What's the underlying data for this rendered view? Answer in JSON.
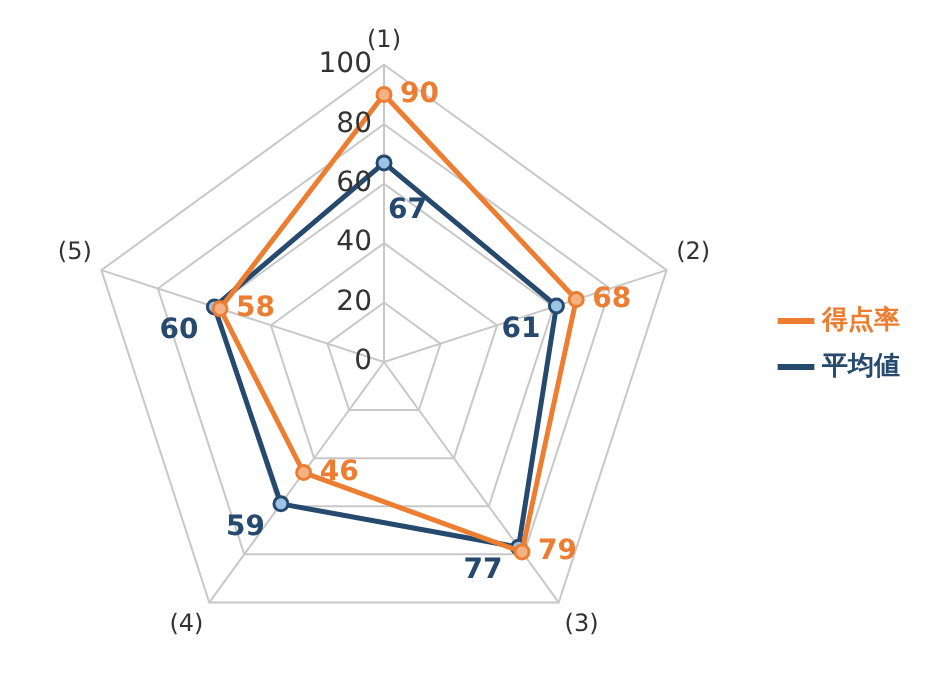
{
  "chart_data": {
    "type": "radar",
    "categories": [
      "(1)",
      "(2)",
      "(3)",
      "(4)",
      "(5)"
    ],
    "series": [
      {
        "name": "得点率",
        "color": "#ed7d31",
        "values": [
          90,
          68,
          79,
          46,
          58
        ]
      },
      {
        "name": "平均値",
        "color": "#264a6e",
        "values": [
          67,
          61,
          77,
          59,
          60
        ]
      }
    ],
    "ylim": [
      0,
      100
    ],
    "yticks": [
      0,
      20,
      40,
      60,
      80,
      100
    ],
    "grid": true,
    "legend": "right",
    "marker": "circle",
    "line_style": "solid",
    "data_labels": true
  }
}
